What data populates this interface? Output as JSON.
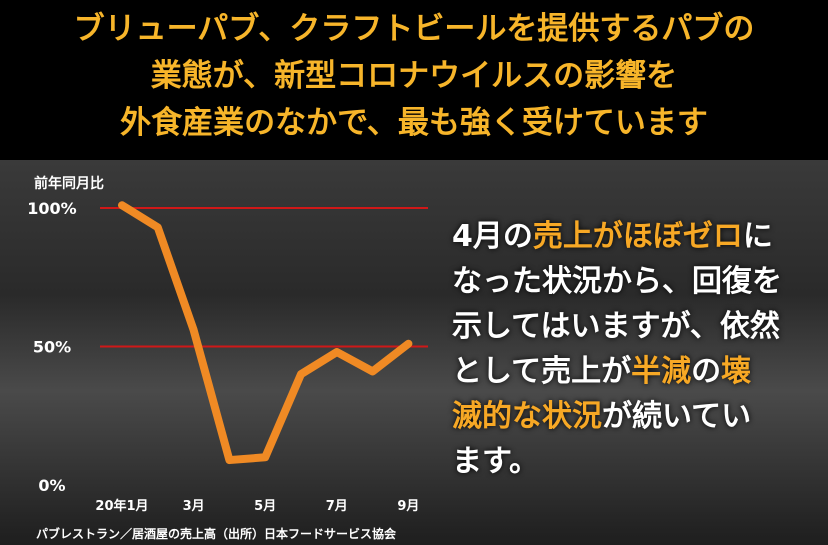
{
  "title_lines": [
    "ブリューパブ、クラフトビールを提供するパブの",
    "業態が、新型コロナウイルスの影響を",
    "外食産業のなかで、最も強く受けています"
  ],
  "message_lines": [
    [
      {
        "text": "4月の",
        "color": "#ffffff"
      },
      {
        "text": "売上がほぼゼロ",
        "color": "#f7a825"
      },
      {
        "text": "に",
        "color": "#ffffff"
      }
    ],
    [
      {
        "text": "なった状況から、回復を",
        "color": "#ffffff"
      }
    ],
    [
      {
        "text": "示してはいますが、依然",
        "color": "#ffffff"
      }
    ],
    [
      {
        "text": "として売上が",
        "color": "#ffffff"
      },
      {
        "text": "半減",
        "color": "#f7a825"
      },
      {
        "text": "の",
        "color": "#ffffff"
      },
      {
        "text": "壊",
        "color": "#f7a825"
      }
    ],
    [
      {
        "text": "滅的な状況",
        "color": "#f7a825"
      },
      {
        "text": "が続いてい",
        "color": "#ffffff"
      }
    ],
    [
      {
        "text": "ます。",
        "color": "#ffffff"
      }
    ]
  ],
  "chart_data": {
    "type": "line",
    "y_label": "前年同月比",
    "source": "パブレストラン／居酒屋の売上高（出所）日本フードサービス協会",
    "categories": [
      "20年1月",
      null,
      "3月",
      null,
      "5月",
      null,
      "7月",
      null,
      "9月"
    ],
    "series": [
      {
        "name": "売上高",
        "color": "#f08a24",
        "values": [
          101,
          93,
          56,
          9,
          10,
          40,
          48,
          41,
          51
        ]
      }
    ],
    "ylim": [
      0,
      100
    ],
    "yticks": [
      {
        "value": 0,
        "label": "0%"
      },
      {
        "value": 50,
        "label": "50%"
      },
      {
        "value": 100,
        "label": "100%"
      }
    ],
    "reference_lines": [
      50,
      100
    ],
    "reference_color": "#d01818"
  }
}
